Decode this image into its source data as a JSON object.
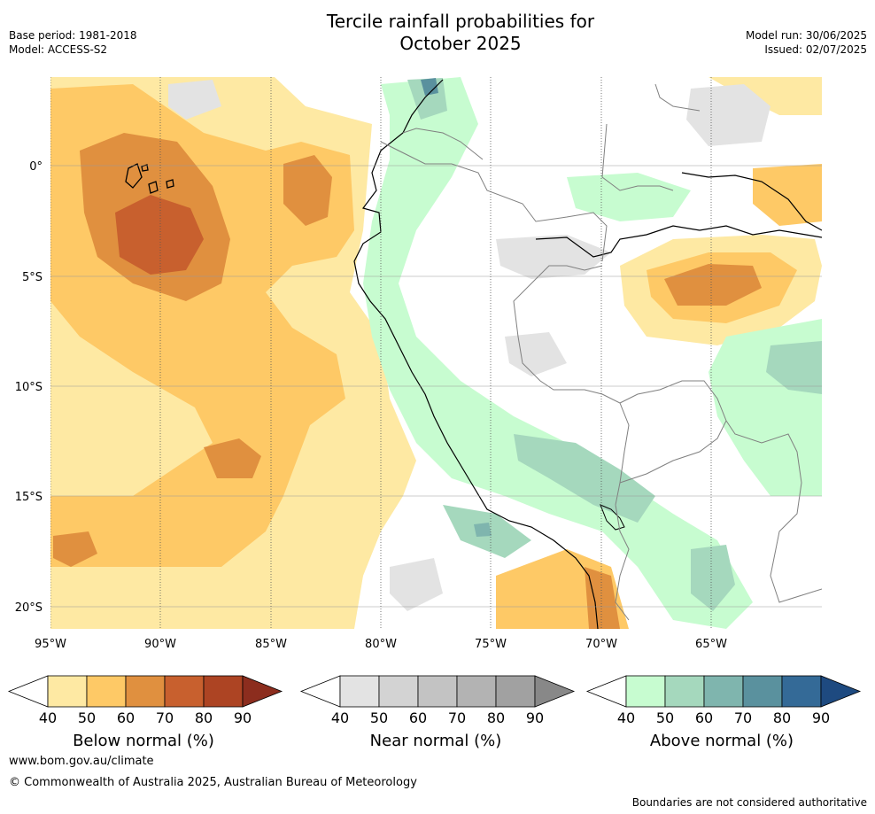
{
  "header": {
    "title_line1": "Tercile rainfall probabilities for",
    "title_line2": "October 2025",
    "base_period": "Base period: 1981-2018",
    "model": "Model: ACCESS-S2",
    "model_run": "Model run: 30/06/2025",
    "issued": "Issued: 02/07/2025"
  },
  "map": {
    "lat_labels": [
      "0°",
      "5°S",
      "10°S",
      "15°S",
      "20°S"
    ],
    "lon_labels": [
      "95°W",
      "90°W",
      "85°W",
      "80°W",
      "75°W",
      "70°W",
      "65°W"
    ],
    "colors": {
      "land_outline": "#000000",
      "border": "#808080",
      "grid": "#aaaaaa"
    }
  },
  "colorbars": [
    {
      "label": "Below normal (%)",
      "ticks": [
        "40",
        "50",
        "60",
        "70",
        "80",
        "90"
      ],
      "colors": [
        "#fee9a3",
        "#fec966",
        "#e0903f",
        "#c8602e",
        "#ad4423",
        "#8c2d1e"
      ]
    },
    {
      "label": "Near normal (%)",
      "ticks": [
        "40",
        "50",
        "60",
        "70",
        "80",
        "90"
      ],
      "colors": [
        "#e3e3e3",
        "#d3d3d3",
        "#c3c3c3",
        "#b3b3b3",
        "#a1a1a1",
        "#888888"
      ]
    },
    {
      "label": "Above normal (%)",
      "ticks": [
        "40",
        "50",
        "60",
        "70",
        "80",
        "90"
      ],
      "colors": [
        "#c7fcd0",
        "#a5d8bd",
        "#7fb5ae",
        "#5a919e",
        "#346a97",
        "#1e4a80"
      ]
    }
  ],
  "footer": {
    "website": "www.bom.gov.au/climate",
    "copyright": "© Commonwealth of Australia 2025, Australian Bureau of Meteorology",
    "disclaimer": "Boundaries are not considered authoritative"
  }
}
